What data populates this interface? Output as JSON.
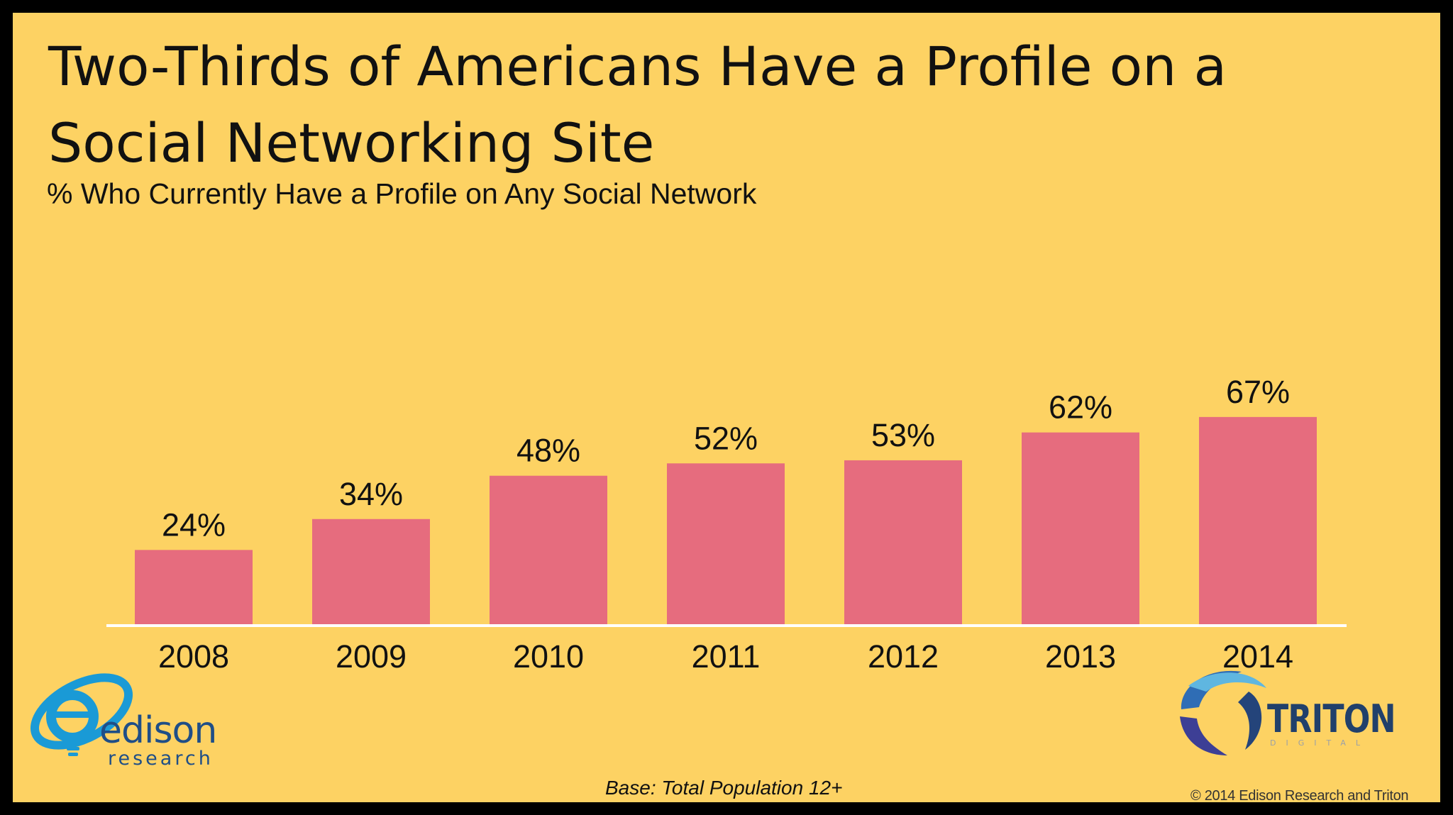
{
  "title": "Two-Thirds of Americans Have a Profile on a Social Networking Site",
  "subtitle": "% Who Currently Have a Profile on Any Social Network",
  "footnote": "Base: Total Population 12+",
  "copyright": "© 2014 Edison Research and Triton Digital",
  "logos": {
    "edison": {
      "name": "edison",
      "tagline": "research"
    },
    "triton": {
      "name": "TRITON",
      "tagline": "DIGITAL"
    }
  },
  "colors": {
    "background": "#FDD263",
    "bar": "#E66C7E",
    "baseline": "#FFFFFF",
    "frame": "#000000"
  },
  "chart_data": {
    "type": "bar",
    "categories": [
      "2008",
      "2009",
      "2010",
      "2011",
      "2012",
      "2013",
      "2014"
    ],
    "values": [
      24,
      34,
      48,
      52,
      53,
      62,
      67
    ],
    "value_labels": [
      "24%",
      "34%",
      "48%",
      "52%",
      "53%",
      "62%",
      "67%"
    ],
    "title": "% Who Currently Have a Profile on Any Social Network",
    "xlabel": "",
    "ylabel": "",
    "grid": false,
    "legend": "none",
    "y_axis_visible": false
  }
}
